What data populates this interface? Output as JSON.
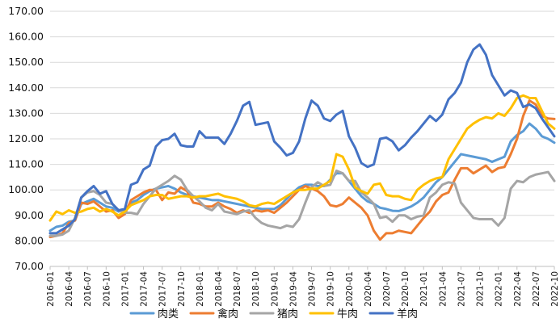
{
  "chart_data": {
    "type": "line",
    "y_ticks": [
      "170.00",
      "160.00",
      "150.00",
      "140.00",
      "130.00",
      "120.00",
      "110.00",
      "100.00",
      "90.00",
      "80.00",
      "70.00"
    ],
    "ylim": [
      70,
      170
    ],
    "x_tick_labels": [
      "2016-01",
      "2016-04",
      "2016-07",
      "2016-10",
      "2017-01",
      "2017-04",
      "2017-07",
      "2017-10",
      "2018-01",
      "2018-04",
      "2018-07",
      "2018-10",
      "2019-01",
      "2019-04",
      "2019-07",
      "2019-10",
      "2020-01",
      "2020-04",
      "2020-07",
      "2020-10",
      "2021-01",
      "2021-04",
      "2021-07",
      "2021-10",
      "2022-01",
      "2022-04",
      "2022-07",
      "2022-10"
    ],
    "x_tick_every": 3,
    "n_points": 82,
    "grid": "horizontal",
    "legend_position": "bottom",
    "series": [
      {
        "name": "肉类",
        "color": "#5B9BD5",
        "values": [
          84.0,
          85.5,
          86.0,
          87.5,
          88.0,
          94.5,
          95.5,
          96.5,
          95.0,
          93.5,
          93.0,
          91.5,
          92.0,
          95.0,
          96.0,
          98.0,
          99.5,
          100.5,
          101.0,
          101.5,
          100.5,
          99.0,
          98.0,
          97.5,
          97.0,
          96.5,
          96.0,
          96.0,
          95.5,
          95.0,
          94.5,
          94.0,
          93.5,
          93.0,
          92.5,
          92.5,
          92.5,
          94.0,
          96.5,
          99.0,
          101.0,
          102.0,
          102.0,
          101.5,
          101.5,
          104.0,
          106.5,
          106.5,
          103.5,
          100.5,
          97.5,
          95.5,
          94.5,
          93.0,
          92.5,
          91.8,
          91.7,
          92.5,
          93.5,
          95.0,
          97.0,
          100.0,
          103.0,
          105.0,
          108.0,
          111.0,
          114.0,
          113.5,
          113.0,
          112.5,
          112.0,
          111.0,
          112.0,
          113.0,
          119.0,
          121.5,
          123.0,
          126.0,
          124.0,
          121.0,
          120.0,
          118.5
        ]
      },
      {
        "name": "禽肉",
        "color": "#ED7D31",
        "values": [
          81.5,
          82.0,
          83.0,
          87.0,
          88.0,
          95.0,
          94.5,
          95.5,
          93.5,
          91.5,
          92.0,
          89.0,
          90.5,
          96.0,
          97.5,
          99.0,
          100.0,
          100.0,
          96.0,
          99.0,
          98.5,
          101.0,
          99.5,
          95.0,
          94.5,
          93.5,
          93.5,
          95.0,
          93.5,
          92.5,
          91.0,
          92.0,
          91.0,
          92.0,
          91.5,
          92.0,
          91.0,
          93.0,
          95.0,
          97.5,
          100.0,
          101.5,
          100.5,
          99.5,
          97.5,
          94.0,
          93.5,
          94.5,
          97.0,
          95.0,
          93.0,
          90.0,
          84.0,
          80.5,
          83.0,
          83.0,
          84.0,
          83.5,
          83.0,
          86.0,
          89.0,
          91.5,
          95.5,
          98.0,
          99.0,
          104.0,
          108.5,
          108.5,
          106.5,
          108.0,
          109.5,
          107.0,
          108.5,
          109.0,
          114.0,
          120.0,
          129.0,
          135.0,
          133.5,
          129.0,
          128.0,
          127.8
        ]
      },
      {
        "name": "猪肉",
        "color": "#A5A5A5",
        "values": [
          82.0,
          82.0,
          82.5,
          84.0,
          89.0,
          97.0,
          99.0,
          99.5,
          98.0,
          95.0,
          94.5,
          92.0,
          91.0,
          91.0,
          90.5,
          94.5,
          97.5,
          100.5,
          102.0,
          103.5,
          105.5,
          104.0,
          100.0,
          97.5,
          95.5,
          93.0,
          92.0,
          94.5,
          91.5,
          91.0,
          90.5,
          91.5,
          92.0,
          89.0,
          87.0,
          86.0,
          85.5,
          85.0,
          86.0,
          85.5,
          88.5,
          95.0,
          101.0,
          103.0,
          101.5,
          102.0,
          107.5,
          106.5,
          103.5,
          103.5,
          99.0,
          97.0,
          94.5,
          89.0,
          89.5,
          87.5,
          90.0,
          90.0,
          88.5,
          89.5,
          90.0,
          97.0,
          99.0,
          102.0,
          103.0,
          102.5,
          95.0,
          92.0,
          89.0,
          88.5,
          88.5,
          88.5,
          86.0,
          89.0,
          100.5,
          103.5,
          103.0,
          105.0,
          106.0,
          106.5,
          107.0,
          103.5
        ]
      },
      {
        "name": "牛肉",
        "color": "#FFC000",
        "values": [
          88.0,
          91.5,
          90.5,
          92.0,
          91.0,
          91.5,
          92.5,
          93.0,
          91.5,
          92.5,
          91.5,
          90.0,
          91.5,
          94.0,
          95.0,
          96.0,
          97.5,
          98.0,
          98.0,
          96.5,
          97.0,
          97.5,
          97.5,
          97.0,
          97.5,
          97.5,
          98.0,
          98.5,
          97.5,
          97.0,
          96.5,
          95.5,
          94.0,
          93.5,
          94.5,
          95.0,
          94.5,
          96.0,
          97.5,
          99.0,
          100.0,
          100.0,
          100.5,
          100.5,
          102.0,
          103.5,
          114.0,
          113.0,
          108.0,
          101.0,
          99.5,
          98.5,
          102.0,
          102.5,
          98.0,
          97.5,
          97.5,
          96.5,
          96.0,
          100.0,
          102.0,
          103.5,
          104.5,
          105.0,
          112.0,
          116.0,
          120.0,
          124.0,
          126.0,
          127.5,
          128.5,
          128.0,
          130.0,
          129.0,
          132.0,
          136.0,
          137.0,
          136.0,
          136.0,
          131.0,
          126.0,
          124.0
        ]
      },
      {
        "name": "羊肉",
        "color": "#4472C4",
        "values": [
          83.0,
          83.0,
          84.5,
          86.0,
          88.5,
          97.0,
          99.5,
          101.5,
          98.5,
          99.5,
          94.5,
          92.0,
          92.5,
          102.0,
          103.0,
          108.0,
          109.5,
          117.0,
          119.5,
          120.0,
          122.0,
          117.5,
          117.0,
          117.0,
          123.0,
          120.5,
          120.5,
          120.5,
          118.0,
          122.0,
          127.0,
          133.0,
          134.5,
          125.5,
          126.0,
          126.5,
          119.0,
          116.5,
          113.5,
          114.5,
          119.0,
          128.0,
          135.0,
          133.0,
          128.0,
          127.0,
          129.5,
          131.0,
          121.0,
          116.5,
          110.5,
          109.0,
          110.0,
          120.0,
          120.5,
          119.0,
          115.5,
          117.5,
          120.5,
          123.0,
          126.0,
          129.0,
          127.0,
          129.5,
          135.5,
          138.0,
          142.0,
          150.0,
          155.0,
          157.0,
          153.0,
          145.0,
          141.0,
          137.0,
          139.0,
          138.0,
          132.5,
          133.5,
          132.0,
          128.0,
          124.5,
          121.0
        ]
      }
    ]
  }
}
